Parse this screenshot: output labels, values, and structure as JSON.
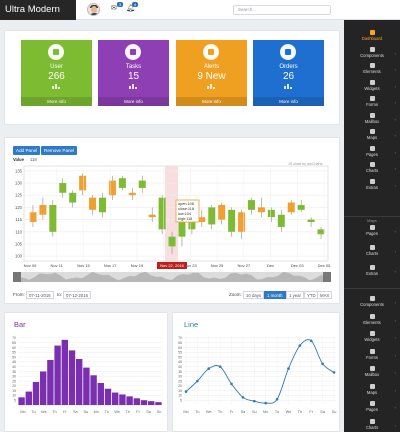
{
  "header": {
    "brand": "Ultra Modern",
    "mail_badge": "3",
    "bell_badge": "4",
    "search_placeholder": "Search..."
  },
  "cards": [
    {
      "label": "User",
      "value": "266",
      "more": "More info",
      "color": "#7dbb33"
    },
    {
      "label": "Tasks",
      "value": "15",
      "more": "More info",
      "color": "#8e3fb3"
    },
    {
      "label": "Alerts",
      "value": "9 New",
      "more": "More info",
      "color": "#f0a020"
    },
    {
      "label": "Orders",
      "value": "26",
      "more": "More info",
      "color": "#1f6fd0"
    }
  ],
  "stock": {
    "add_panel": "Add Panel",
    "remove_panel": "Remove Panel",
    "value_label": "Value",
    "value_reading": "118",
    "credit": "JS chart by amCharts",
    "from_label": "From:",
    "from_value": "07-11-2016",
    "to_label": "to:",
    "to_value": "07-12-2016",
    "zoom_label": "Zoom:",
    "zoom_options": [
      "10 days",
      "1 month",
      "1 year",
      "YTD",
      "MAX"
    ],
    "zoom_selected": "1 month",
    "tooltip": [
      "open:108",
      "close:118",
      "low:104",
      "high:118"
    ],
    "highlight_date": "Nov 22, 2016"
  },
  "sidebar": {
    "group1": [
      "Dashboard",
      "Components",
      "Elements",
      "Widgets",
      "Forms",
      "Mailbox",
      "Maps",
      "Pages",
      "Charts",
      "Extras"
    ],
    "group2_head": "Maps",
    "group2": [
      "Pages",
      "Charts",
      "Extras"
    ],
    "group3": [
      "Components",
      "Elements",
      "Widgets",
      "Forms",
      "Mailbox",
      "Maps",
      "Pages",
      "Charts"
    ],
    "active": "Dashboard"
  },
  "bar_panel": {
    "title": "Bar"
  },
  "line_panel": {
    "title": "Line"
  },
  "chart_data": [
    {
      "type": "candlestick",
      "yticks": [
        135,
        130,
        125,
        120,
        115,
        110,
        105,
        100
      ],
      "ylim": [
        98,
        137
      ],
      "xticks": [
        "Nov 09",
        "Nov 11",
        "Nov 15",
        "Nov 17",
        "Nov 19",
        "Nov 21",
        "Nov 23",
        "Nov 25",
        "Nov 27",
        "Dec",
        "Dec 03",
        "Dec 05"
      ],
      "candles": [
        {
          "o": 118,
          "c": 114,
          "h": 121,
          "l": 112
        },
        {
          "o": 121,
          "c": 117,
          "h": 124,
          "l": 115
        },
        {
          "o": 110,
          "c": 121,
          "h": 123,
          "l": 108
        },
        {
          "o": 126,
          "c": 130,
          "h": 132,
          "l": 124
        },
        {
          "o": 122,
          "c": 126,
          "h": 127,
          "l": 120
        },
        {
          "o": 133,
          "c": 127,
          "h": 134,
          "l": 125
        },
        {
          "o": 124,
          "c": 119,
          "h": 125,
          "l": 117
        },
        {
          "o": 118,
          "c": 124,
          "h": 126,
          "l": 116
        },
        {
          "o": 131,
          "c": 125,
          "h": 133,
          "l": 123
        },
        {
          "o": 128,
          "c": 132,
          "h": 133,
          "l": 127
        },
        {
          "o": 126,
          "c": 125,
          "h": 128,
          "l": 123
        },
        {
          "o": 128,
          "c": 131,
          "h": 133,
          "l": 126
        },
        {
          "o": 117,
          "c": 116,
          "h": 120,
          "l": 114
        },
        {
          "o": 111,
          "c": 124,
          "h": 125,
          "l": 109
        },
        {
          "o": 104,
          "c": 108,
          "h": 110,
          "l": 101
        },
        {
          "o": 108,
          "c": 118,
          "h": 118,
          "l": 104
        },
        {
          "o": 111,
          "c": 117,
          "h": 118,
          "l": 109
        },
        {
          "o": 116,
          "c": 114,
          "h": 119,
          "l": 112
        },
        {
          "o": 113,
          "c": 120,
          "h": 121,
          "l": 111
        },
        {
          "o": 121,
          "c": 115,
          "h": 122,
          "l": 113
        },
        {
          "o": 110,
          "c": 119,
          "h": 120,
          "l": 108
        },
        {
          "o": 118,
          "c": 110,
          "h": 119,
          "l": 107
        },
        {
          "o": 119,
          "c": 123,
          "h": 124,
          "l": 117
        },
        {
          "o": 120,
          "c": 118,
          "h": 124,
          "l": 116
        },
        {
          "o": 116,
          "c": 119,
          "h": 120,
          "l": 114
        },
        {
          "o": 112,
          "c": 117,
          "h": 119,
          "l": 110
        },
        {
          "o": 122,
          "c": 118,
          "h": 123,
          "l": 117
        },
        {
          "o": 119,
          "c": 121,
          "h": 123,
          "l": 118
        },
        {
          "o": 114,
          "c": 115,
          "h": 116,
          "l": 112
        },
        {
          "o": 109,
          "c": 111,
          "h": 112,
          "l": 107
        }
      ]
    },
    {
      "type": "bar",
      "yticks": [
        70,
        65,
        60,
        55,
        50,
        45,
        40,
        35,
        30,
        25,
        20,
        15,
        10,
        5
      ],
      "ylim": [
        0,
        72
      ],
      "xticks": [
        "Mo",
        "Tu",
        "We",
        "Th",
        "Fr",
        "Sa",
        "Su",
        "Mo",
        "Tu",
        "We",
        "Th",
        "Fr",
        "Sa",
        "Su"
      ],
      "values": [
        8,
        14,
        24,
        35,
        47,
        62,
        68,
        57,
        48,
        39,
        31,
        23,
        17,
        13,
        11,
        9,
        7,
        5,
        4,
        3
      ],
      "color": "#7a2fb0"
    },
    {
      "type": "line",
      "yticks": [
        70,
        65,
        60,
        55,
        50,
        45,
        40,
        35,
        30,
        25,
        20,
        15,
        10,
        5
      ],
      "ylim": [
        0,
        72
      ],
      "xticks": [
        "Mo",
        "Tu",
        "We",
        "Th",
        "Fr",
        "Sa",
        "Su",
        "Mo",
        "Tu",
        "We",
        "Th",
        "Fr",
        "Sa",
        "Su"
      ],
      "values": [
        14,
        25,
        38,
        40,
        22,
        8,
        4,
        2,
        6,
        38,
        62,
        67,
        43,
        34
      ],
      "color": "#2d7ab8"
    }
  ]
}
